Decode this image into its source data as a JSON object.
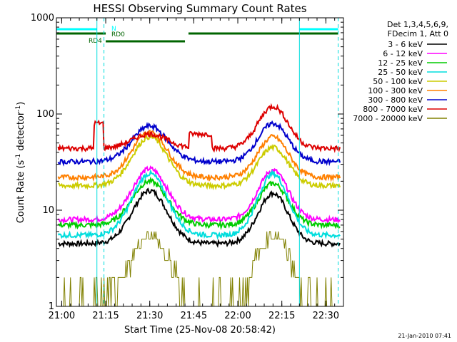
{
  "chart_data": {
    "type": "line",
    "title": "HESSI Observing Summary Count Rates",
    "xlabel": "Start Time (25-Nov-08 20:58:42)",
    "ylabel_main": "Count Rate (s",
    "ylabel_sup1": "-1",
    "ylabel_mid": " detector",
    "ylabel_sup2": "-1",
    "ylabel_end": ")",
    "y_scale": "log",
    "ylim": [
      1,
      1000
    ],
    "x_range_minutes": [
      20.97,
      22.6
    ],
    "x_ticks": [
      "21:00",
      "21:15",
      "21:30",
      "21:45",
      "22:00",
      "22:15",
      "22:30"
    ],
    "x_tick_values": [
      21.0,
      21.25,
      21.5,
      21.75,
      22.0,
      22.25,
      22.5
    ],
    "y_ticks": [
      "1",
      "10",
      "100",
      "1000"
    ],
    "y_tick_values": [
      1,
      10,
      100,
      1000
    ],
    "grid": false,
    "legend_header": [
      "Det 1,3,4,5,6,9,",
      "FDecim 1, Att 0"
    ],
    "legend_position": "right",
    "series": [
      {
        "name": "3 - 6 keV",
        "color": "#000000",
        "baseline": 4.5,
        "peaks": [
          16,
          15
        ]
      },
      {
        "name": "6 - 12 keV",
        "color": "#ff00ff",
        "baseline": 8,
        "peaks": [
          27,
          26
        ]
      },
      {
        "name": "12 - 25 keV",
        "color": "#00cc00",
        "baseline": 7,
        "peaks": [
          20,
          19
        ]
      },
      {
        "name": "25 - 50 keV",
        "color": "#00dddd",
        "baseline": 5.5,
        "peaks": [
          24,
          24
        ]
      },
      {
        "name": "50 - 100 keV",
        "color": "#cccc00",
        "baseline": 18,
        "peaks": [
          58,
          45
        ]
      },
      {
        "name": "100 - 300 keV",
        "color": "#ff8000",
        "baseline": 22,
        "peaks": [
          65,
          58
        ]
      },
      {
        "name": "300 - 800 keV",
        "color": "#0000cc",
        "baseline": 32,
        "peaks": [
          75,
          80
        ]
      },
      {
        "name": "800 - 7000 keV",
        "color": "#dd0000",
        "baseline": 44,
        "peaks": [
          62,
          120
        ]
      },
      {
        "name": "7000 - 20000 keV",
        "color": "#808000",
        "baseline": 1,
        "peaks": [
          5.5,
          5.5
        ]
      }
    ],
    "bars": [
      {
        "label": "N",
        "color": "#00ffff",
        "segments": [
          [
            20.97,
            21.2
          ],
          [
            22.35,
            22.57
          ]
        ]
      },
      {
        "label": "RD0",
        "color": "#006400",
        "segments": [
          [
            20.97,
            21.25
          ],
          [
            21.72,
            22.57
          ]
        ]
      },
      {
        "label": "RD4",
        "color": "#006400",
        "segments": [
          [
            21.25,
            21.7
          ]
        ]
      }
    ],
    "vlines_solid": [
      21.2,
      22.35
    ],
    "vlines_dashed": [
      21.24,
      22.57
    ],
    "timestamp": "21-Jan-2010 07:41"
  }
}
